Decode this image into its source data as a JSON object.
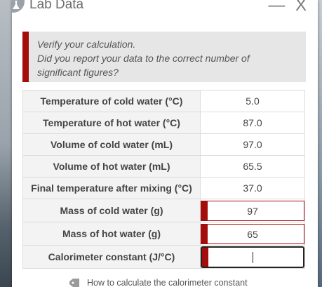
{
  "window": {
    "title": "Lab Data",
    "minimize_label": "—",
    "close_label": "X"
  },
  "alert": {
    "line1": "Verify your calculation.",
    "line2": "Did you report your data to the correct number of",
    "line3": "significant figures?"
  },
  "rows": [
    {
      "label": "Temperature of cold water (°C)",
      "value": "5.0"
    },
    {
      "label": "Temperature of hot water (°C)",
      "value": "87.0"
    },
    {
      "label": "Volume of cold water (mL)",
      "value": "97.0"
    },
    {
      "label": "Volume of hot water (mL)",
      "value": "65.5"
    },
    {
      "label": "Final temperature after mixing (°C)",
      "value": "37.0"
    }
  ],
  "inputs": [
    {
      "label": "Mass of cold water (g)",
      "value": "97"
    },
    {
      "label": "Mass of hot water (g)",
      "value": "65"
    },
    {
      "label": "Calorimeter constant (J/°C)",
      "value": ""
    }
  ],
  "help_link": "How to calculate the calorimeter constant",
  "colors": {
    "error_accent": "#a50d0d",
    "alert_bg": "#e6e6e6"
  },
  "icons": {
    "app": "flask-icon",
    "help": "tag-icon"
  }
}
